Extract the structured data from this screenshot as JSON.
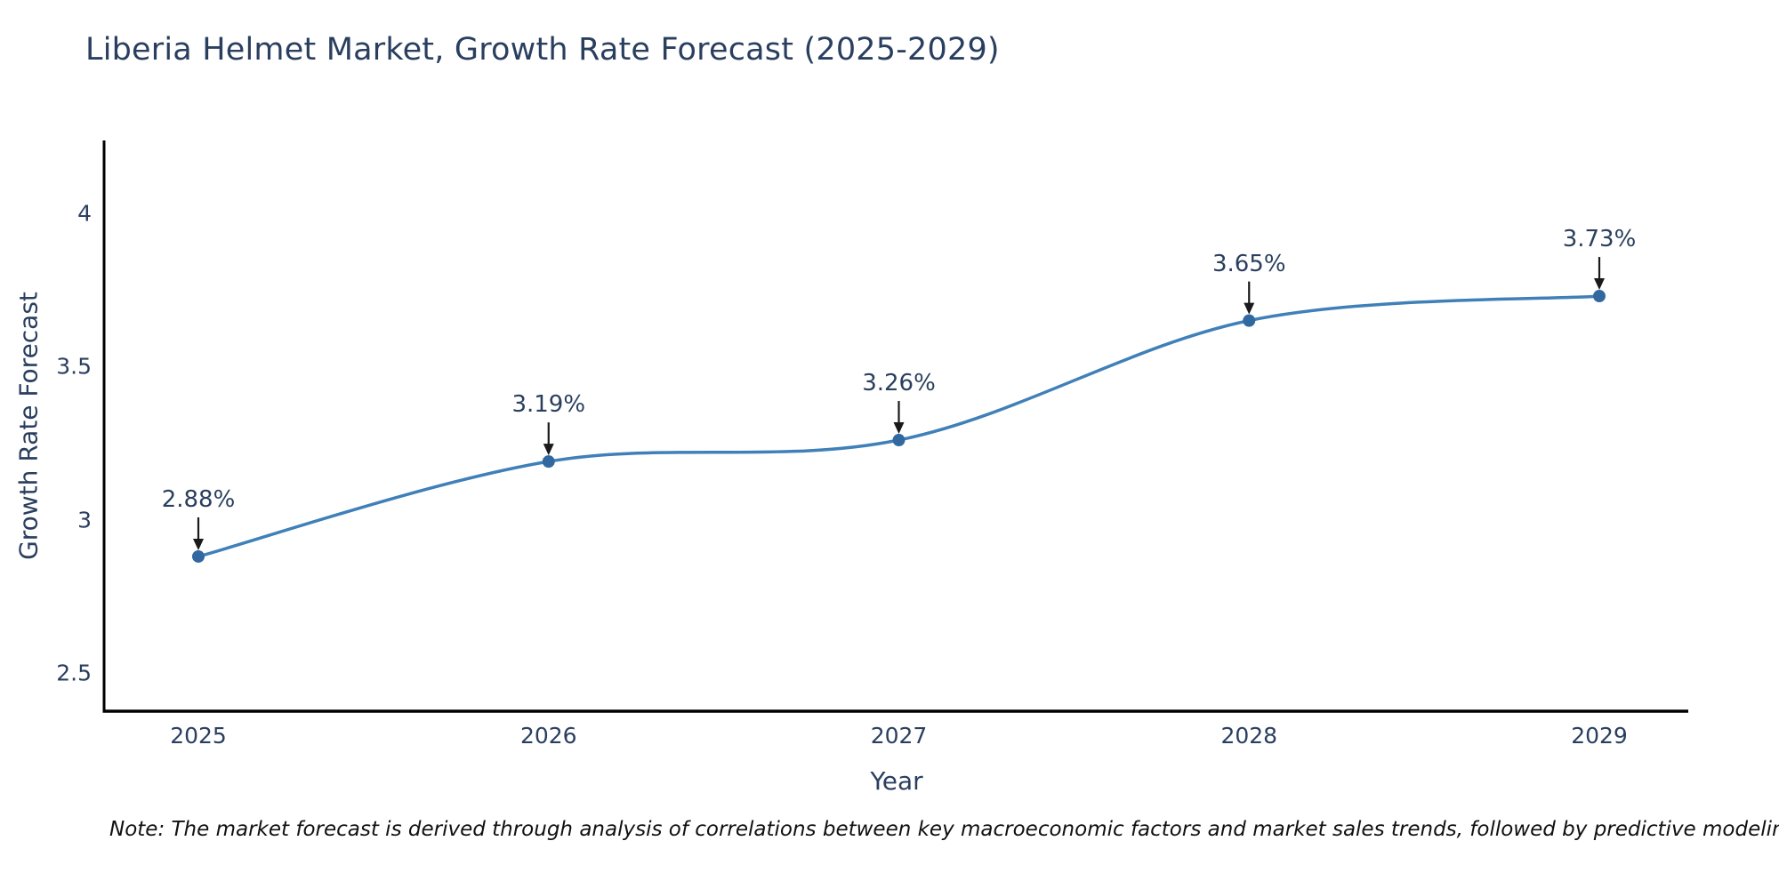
{
  "title": "Liberia Helmet Market, Growth Rate Forecast (2025-2029)",
  "note": "Note: The market forecast is derived through analysis of correlations between key macroeconomic factors and market sales trends, followed by predictive modeling to project future sales",
  "chart_data": {
    "type": "line",
    "line_shape": "spline",
    "title": "Liberia Helmet Market, Growth Rate Forecast (2025-2029)",
    "xlabel": "Year",
    "ylabel": "Growth Rate Forecast",
    "categories": [
      "2025",
      "2026",
      "2027",
      "2028",
      "2029"
    ],
    "series": [
      {
        "name": "Growth Rate Forecast",
        "values": [
          2.88,
          3.19,
          3.26,
          3.65,
          3.73
        ]
      }
    ],
    "point_labels": [
      "2.88%",
      "3.19%",
      "3.26%",
      "3.65%",
      "3.73%"
    ],
    "yticks": [
      2.5,
      3,
      3.5,
      4
    ],
    "ylim": [
      2.375,
      4.238
    ],
    "grid": false,
    "legend": "none",
    "annotations_style": "label-with-down-arrow",
    "colors": {
      "line": "#4080b8",
      "marker": "#31689f",
      "arrow": "#1a1a1a",
      "text": "#2a3f5f",
      "axis": "#000000",
      "note_text": "#111111",
      "background": "#ffffff"
    }
  }
}
